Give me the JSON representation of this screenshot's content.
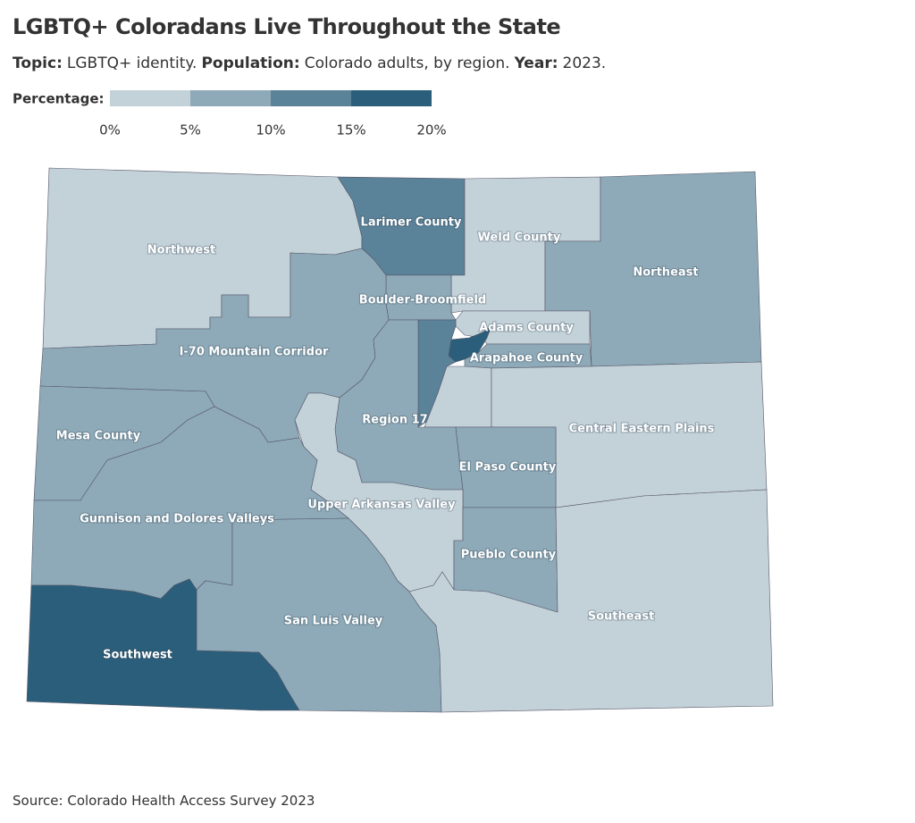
{
  "header": {
    "title": "LGBTQ+ Coloradans Live Throughout the State",
    "subtitle": [
      {
        "label": "Topic:",
        "text": "LGBTQ+ identity."
      },
      {
        "label": "Population:",
        "text": "Colorado adults, by region."
      },
      {
        "label": "Year:",
        "text": "2023."
      }
    ]
  },
  "legend": {
    "label": "Percentage:",
    "ticks": [
      {
        "value": 0,
        "label": "0%"
      },
      {
        "value": 5,
        "label": "5%"
      },
      {
        "value": 10,
        "label": "10%"
      },
      {
        "value": 15,
        "label": "15%"
      },
      {
        "value": 20,
        "label": "20%"
      }
    ],
    "colors": [
      "#c3d1d9",
      "#8eaab8",
      "#5a8299",
      "#2b5e7b"
    ]
  },
  "regions": [
    {
      "name": "Northwest",
      "color": "#c3d1d9"
    },
    {
      "name": "Larimer County",
      "color": "#5a8299"
    },
    {
      "name": "Weld County",
      "color": "#c3d1d9"
    },
    {
      "name": "Northeast",
      "color": "#8eaab8"
    },
    {
      "name": "Boulder-Broomfield",
      "color": "#8eaab8"
    },
    {
      "name": "Adams County",
      "color": "#c3d1d9"
    },
    {
      "name": null,
      "color": "#2b5e7b"
    },
    {
      "name": "Arapahoe County",
      "color": "#8eaab8"
    },
    {
      "name": null,
      "color": "#5a8299"
    },
    {
      "name": null,
      "color": "#c3d1d9"
    },
    {
      "name": "I-70 Mountain Corridor",
      "color": "#8eaab8"
    },
    {
      "name": "Region 17",
      "color": "#8eaab8"
    },
    {
      "name": "Mesa County",
      "color": "#8eaab8"
    },
    {
      "name": "Central Eastern Plains",
      "color": "#c3d1d9"
    },
    {
      "name": "El Paso County",
      "color": "#8eaab8"
    },
    {
      "name": "Upper Arkansas Valley",
      "color": "#c3d1d9"
    },
    {
      "name": "Gunnison and Dolores Valleys",
      "color": "#8eaab8"
    },
    {
      "name": "Pueblo County",
      "color": "#8eaab8"
    },
    {
      "name": "San Luis Valley",
      "color": "#8eaab8"
    },
    {
      "name": "Southeast",
      "color": "#c3d1d9"
    },
    {
      "name": "Southwest",
      "color": "#2b5e7b"
    }
  ],
  "source": "Source: Colorado Health Access Survey 2023"
}
